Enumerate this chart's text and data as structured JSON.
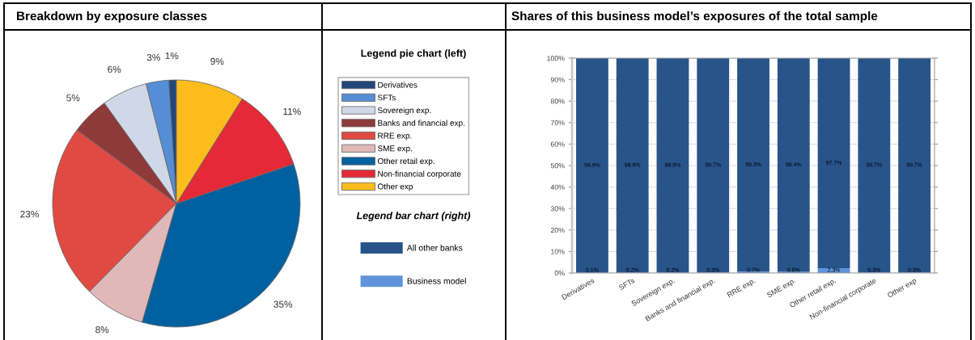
{
  "chart_data": [
    {
      "type": "pie",
      "title": "Breakdown by exposure classes",
      "legend_title": "Legend pie chart (left)",
      "legend": "right",
      "categories": [
        "Derivatives",
        "SFTs",
        "Sovereign exp.",
        "Banks and financial exp.",
        "RRE exp.",
        "SME exp.",
        "Other retail exp.",
        "Non-financial corporate",
        "Other exp"
      ],
      "values": [
        1,
        3,
        6,
        5,
        23,
        8,
        35,
        11,
        9
      ],
      "colors": [
        "#24477a",
        "#558ed5",
        "#d0d8e8",
        "#8e3a3a",
        "#e04a43",
        "#e0b8b8",
        "#0060a0",
        "#e32a36",
        "#fbbc1c"
      ],
      "value_labels": [
        "1%",
        "3%",
        "6%",
        "5%",
        "23%",
        "8%",
        "35%",
        "11%",
        "9%"
      ]
    },
    {
      "type": "bar",
      "title": "Shares of this business model’s exposures of the total sample",
      "legend_title": "Legend bar chart (right)",
      "legend": "left",
      "stacked": true,
      "grid": "y",
      "categories": [
        "Derivatives",
        "SFTs",
        "Sovereign exp.",
        "Banks and financial exp.",
        "RRE exp.",
        "SME exp.",
        "Other retail exp.",
        "Non-financial corporate",
        "Other exp"
      ],
      "series": [
        {
          "name": "Business model",
          "color": "#5f93db",
          "values": [
            0.1,
            0.2,
            0.2,
            0.3,
            0.7,
            0.6,
            2.3,
            0.3,
            0.3
          ],
          "value_labels": [
            "0.1%",
            "0.2%",
            "0.2%",
            "0.3%",
            "0.7%",
            "0.6%",
            "2.3%",
            "0.3%",
            "0.3%"
          ]
        },
        {
          "name": "All other banks",
          "color": "#28548a",
          "values": [
            99.9,
            99.8,
            99.8,
            99.7,
            99.3,
            99.4,
            97.7,
            99.7,
            99.7
          ],
          "value_labels": [
            "99.9%",
            "99.8%",
            "99.8%",
            "99.7%",
            "99.3%",
            "99.4%",
            "97.7%",
            "99.7%",
            "99.7%"
          ]
        }
      ],
      "ylim": [
        0,
        100
      ],
      "yticks": [
        {
          "value": 0,
          "label": "0%"
        },
        {
          "value": 10,
          "label": "10%"
        },
        {
          "value": 20,
          "label": "20%"
        },
        {
          "value": 30,
          "label": "30%"
        },
        {
          "value": 40,
          "label": "40%"
        },
        {
          "value": 50,
          "label": "50%"
        },
        {
          "value": 60,
          "label": "60%"
        },
        {
          "value": 70,
          "label": "70%"
        },
        {
          "value": 80,
          "label": "80%"
        },
        {
          "value": 90,
          "label": "90%"
        },
        {
          "value": 100,
          "label": "100%"
        }
      ]
    }
  ]
}
